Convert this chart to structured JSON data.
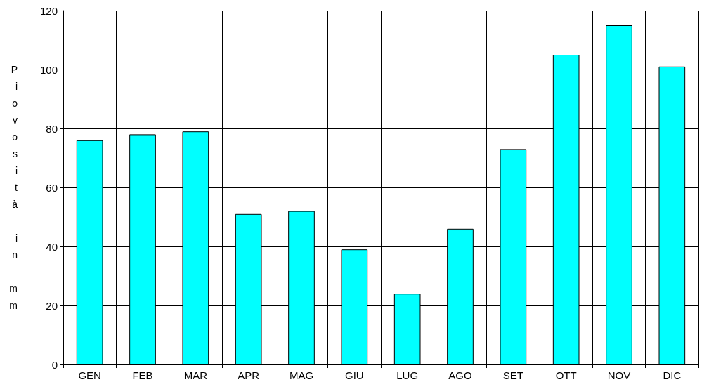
{
  "chart_data": {
    "type": "bar",
    "ylabel": "Piovosità in mm",
    "categories": [
      "GEN",
      "FEB",
      "MAR",
      "APR",
      "MAG",
      "GIU",
      "LUG",
      "AGO",
      "SET",
      "OTT",
      "NOV",
      "DIC"
    ],
    "values": [
      76,
      78,
      79,
      51,
      52,
      39,
      24,
      46,
      73,
      105,
      115,
      101
    ],
    "color": "#00ffff",
    "ylim": [
      0,
      120
    ],
    "yticks": [
      0,
      20,
      40,
      60,
      80,
      100,
      120
    ],
    "grid": true
  }
}
